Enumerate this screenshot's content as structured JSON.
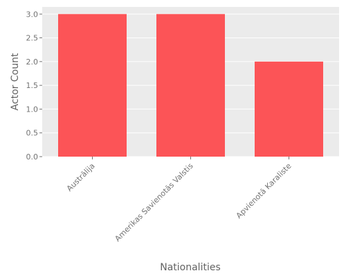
{
  "chart_data": {
    "type": "bar",
    "title": "",
    "categories": [
      "Austrālija",
      "Amerikas Savienotās Valstis",
      "Apvienotā Karaliste"
    ],
    "values": [
      3,
      3,
      2
    ],
    "xlabel": "Nationalities",
    "ylabel": "Actor Count",
    "ylim": [
      0,
      3.15
    ],
    "yticks": [
      0.0,
      0.5,
      1.0,
      1.5,
      2.0,
      2.5,
      3.0
    ],
    "ytick_labels": [
      "0.0",
      "0.5",
      "1.0",
      "1.5",
      "2.0",
      "2.5",
      "3.0"
    ],
    "grid": true,
    "legend": "none",
    "colors": {
      "bar": "#fc5457",
      "plot_background": "#ebebeb",
      "grid": "#ffffff",
      "text": "#737373",
      "axis_label": "#636363"
    }
  }
}
